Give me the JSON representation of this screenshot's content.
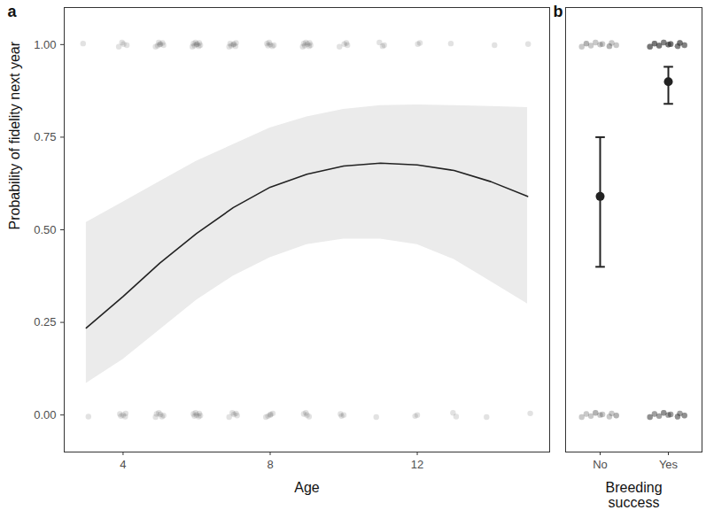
{
  "chart_data": [
    {
      "type": "line",
      "title": "a",
      "x_label": "Age",
      "y_label": "Probability of fidelity next year",
      "x": [
        3,
        4,
        5,
        6,
        7,
        8,
        9,
        10,
        11,
        12,
        13,
        14,
        15
      ],
      "values": [
        0.235,
        0.32,
        0.41,
        0.49,
        0.56,
        0.615,
        0.65,
        0.672,
        0.68,
        0.675,
        0.66,
        0.63,
        0.59
      ],
      "ci_lower": [
        0.085,
        0.15,
        0.23,
        0.31,
        0.375,
        0.425,
        0.46,
        0.475,
        0.475,
        0.46,
        0.42,
        0.36,
        0.3
      ],
      "ci_upper": [
        0.52,
        0.575,
        0.63,
        0.685,
        0.73,
        0.775,
        0.805,
        0.825,
        0.835,
        0.837,
        0.835,
        0.833,
        0.83
      ],
      "points": {
        "x": [
          3,
          3,
          4,
          4,
          5,
          5,
          6,
          6,
          7,
          7,
          8,
          8,
          9,
          9,
          10,
          10,
          11,
          11,
          12,
          12,
          13,
          13,
          14,
          14,
          15,
          15
        ],
        "y": [
          1,
          0,
          1,
          0,
          1,
          0,
          1,
          0,
          1,
          0,
          1,
          0,
          1,
          0,
          1,
          0,
          1,
          0,
          1,
          0,
          1,
          0,
          1,
          0,
          1,
          0
        ],
        "count": [
          1,
          1,
          4,
          5,
          7,
          6,
          9,
          7,
          7,
          5,
          6,
          5,
          8,
          4,
          4,
          3,
          3,
          1,
          2,
          2,
          1,
          2,
          1,
          1,
          1,
          1
        ]
      },
      "xlim": [
        2.4,
        15.6
      ],
      "xticks": [
        4,
        8,
        12
      ],
      "ylim": [
        -0.1,
        1.1
      ],
      "yticks": [
        {
          "value": 0,
          "label": "0.00"
        },
        {
          "value": 0.25,
          "label": "0.25"
        },
        {
          "value": 0.5,
          "label": "0.50"
        },
        {
          "value": 0.75,
          "label": "0.75"
        },
        {
          "value": 1,
          "label": "1.00"
        }
      ],
      "color": "#222222",
      "grid": false
    },
    {
      "type": "errorbar",
      "title": "b",
      "x_label": "Breeding\nsuccess",
      "categories": [
        "No",
        "Yes"
      ],
      "values": [
        0.59,
        0.9
      ],
      "error_lower": [
        0.4,
        0.84
      ],
      "error_upper": [
        0.75,
        0.94
      ],
      "points": {
        "categories": [
          "No",
          "No",
          "Yes",
          "Yes"
        ],
        "y": [
          1,
          0,
          1,
          0
        ],
        "count": [
          20,
          20,
          60,
          40
        ]
      },
      "ylim": [
        -0.1,
        1.1
      ],
      "tick_labels": "x",
      "color": "#222222",
      "grid": false
    }
  ]
}
